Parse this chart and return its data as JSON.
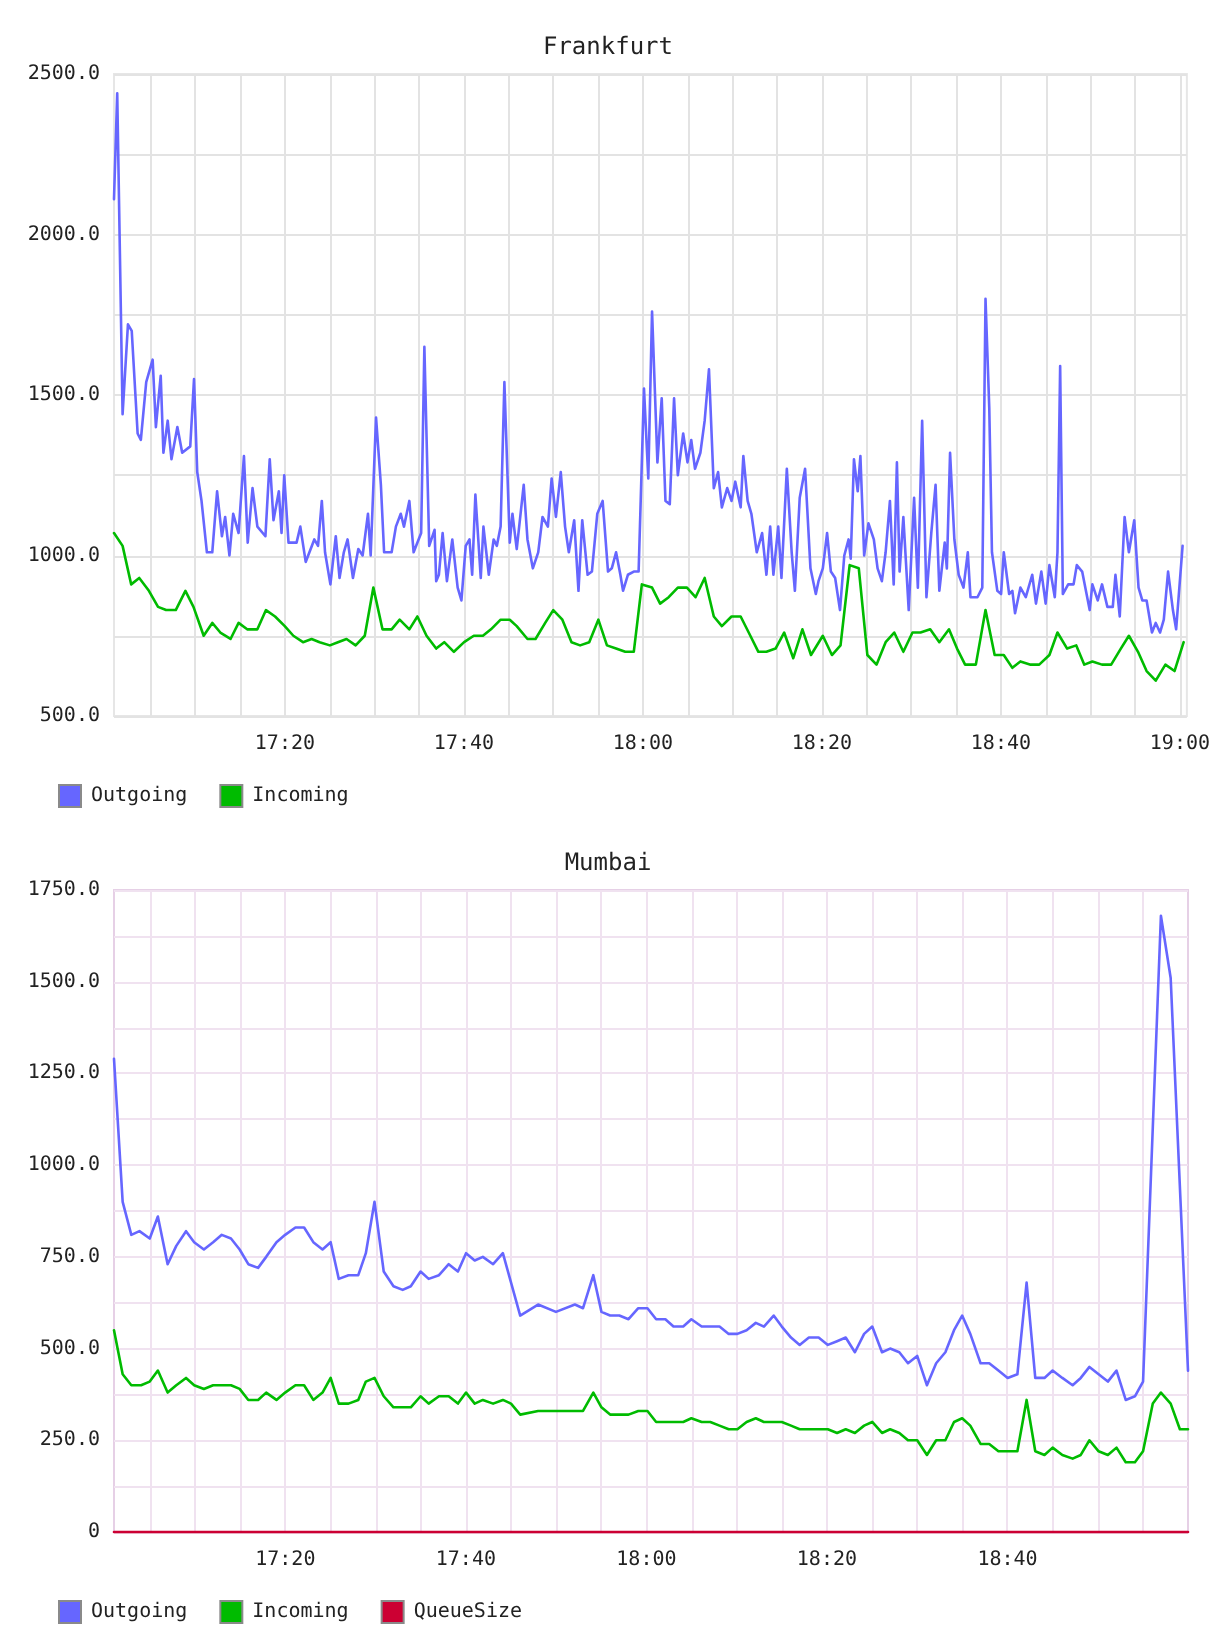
{
  "chart_data": [
    {
      "type": "line",
      "title": "Frankfurt",
      "xlim": [
        17.015,
        19.013
      ],
      "xticks": [
        {
          "value": 17.0833,
          "label": null
        },
        {
          "value": 17.1667,
          "label": null
        },
        {
          "value": 17.25,
          "label": null
        },
        {
          "value": 17.3333,
          "label": "17:20"
        },
        {
          "value": 17.4167,
          "label": null
        },
        {
          "value": 17.5,
          "label": null
        },
        {
          "value": 17.5833,
          "label": null
        },
        {
          "value": 17.6667,
          "label": "17:40"
        },
        {
          "value": 17.75,
          "label": null
        },
        {
          "value": 17.8333,
          "label": null
        },
        {
          "value": 17.9167,
          "label": null
        },
        {
          "value": 18,
          "label": "18:00"
        },
        {
          "value": 18.0833,
          "label": null
        },
        {
          "value": 18.1667,
          "label": null
        },
        {
          "value": 18.25,
          "label": null
        },
        {
          "value": 18.3333,
          "label": "18:20"
        },
        {
          "value": 18.4167,
          "label": null
        },
        {
          "value": 18.5,
          "label": null
        },
        {
          "value": 18.5833,
          "label": null
        },
        {
          "value": 18.6667,
          "label": "18:40"
        },
        {
          "value": 18.75,
          "label": null
        },
        {
          "value": 18.8333,
          "label": null
        },
        {
          "value": 18.9167,
          "label": null
        },
        {
          "value": 19,
          "label": "19:00"
        }
      ],
      "ylim": [
        500,
        2500
      ],
      "yticks": [
        {
          "value": 500,
          "label": "500.0"
        },
        {
          "value": 750,
          "label": null
        },
        {
          "value": 1000,
          "label": "1000.0"
        },
        {
          "value": 1250,
          "label": null
        },
        {
          "value": 1500,
          "label": "1500.0"
        },
        {
          "value": 1750,
          "label": null
        },
        {
          "value": 2000,
          "label": "2000.0"
        },
        {
          "value": 2250,
          "label": null
        },
        {
          "value": 2500,
          "label": "2500.0"
        }
      ],
      "grid": true,
      "legend": "bottom left",
      "marker": "none",
      "line_style": "solid",
      "series": [
        {
          "name": "Outgoing",
          "color": "#6666ff",
          "x": [
            17.015,
            17.021,
            17.031,
            17.041,
            17.048,
            17.059,
            17.065,
            17.075,
            17.087,
            17.093,
            17.102,
            17.107,
            17.115,
            17.122,
            17.133,
            17.142,
            17.157,
            17.164,
            17.17,
            17.178,
            17.188,
            17.198,
            17.207,
            17.216,
            17.222,
            17.23,
            17.237,
            17.247,
            17.257,
            17.264,
            17.273,
            17.282,
            17.297,
            17.305,
            17.312,
            17.322,
            17.327,
            17.332,
            17.34,
            17.355,
            17.362,
            17.372,
            17.388,
            17.395,
            17.402,
            17.408,
            17.418,
            17.428,
            17.435,
            17.443,
            17.45,
            17.46,
            17.47,
            17.478,
            17.488,
            17.493,
            17.503,
            17.512,
            17.518,
            17.532,
            17.54,
            17.549,
            17.555,
            17.565,
            17.573,
            17.587,
            17.593,
            17.602,
            17.612,
            17.615,
            17.62,
            17.627,
            17.635,
            17.645,
            17.655,
            17.662,
            17.67,
            17.677,
            17.682,
            17.688,
            17.698,
            17.703,
            17.713,
            17.722,
            17.728,
            17.735,
            17.742,
            17.752,
            17.757,
            17.765,
            17.778,
            17.785,
            17.795,
            17.805,
            17.813,
            17.823,
            17.83,
            17.838,
            17.847,
            17.855,
            17.862,
            17.872,
            17.88,
            17.887,
            17.897,
            17.905,
            17.915,
            17.925,
            17.935,
            17.942,
            17.95,
            17.958,
            17.963,
            17.972,
            17.983,
            17.992,
            18.002,
            18.01,
            18.017,
            18.027,
            18.035,
            18.042,
            18.05,
            18.058,
            18.065,
            18.075,
            18.083,
            18.09,
            18.097,
            18.107,
            18.115,
            18.123,
            18.132,
            18.14,
            18.147,
            18.157,
            18.165,
            18.172,
            18.182,
            18.187,
            18.195,
            18.202,
            18.212,
            18.222,
            18.23,
            18.237,
            18.243,
            18.252,
            18.258,
            18.268,
            18.277,
            18.283,
            18.292,
            18.302,
            18.312,
            18.322,
            18.327,
            18.335,
            18.343,
            18.35,
            18.358,
            18.367,
            18.375,
            18.383,
            18.387,
            18.393,
            18.4,
            18.405,
            18.412,
            18.42,
            18.43,
            18.437,
            18.445,
            18.452,
            18.46,
            18.467,
            18.473,
            18.478,
            18.485,
            18.495,
            18.505,
            18.512,
            18.52,
            18.528,
            18.537,
            18.545,
            18.552,
            18.562,
            18.566,
            18.572,
            18.58,
            18.588,
            18.597,
            18.605,
            18.61,
            18.623,
            18.632,
            18.638,
            18.645,
            18.65,
            18.66,
            18.667,
            18.672,
            18.682,
            18.688,
            18.693,
            18.703,
            18.713,
            18.725,
            18.732,
            18.742,
            18.75,
            18.757,
            18.767,
            18.772,
            18.777,
            18.782,
            18.792,
            18.802,
            18.808,
            18.818,
            18.832,
            18.837,
            18.847,
            18.855,
            18.865,
            18.875,
            18.88,
            18.888,
            18.897,
            18.905,
            18.915,
            18.923,
            18.93,
            18.938,
            18.948,
            18.955,
            18.963,
            18.97,
            18.978,
            18.987,
            18.993,
            19.005
          ],
          "values": [
            2110,
            2440,
            1440,
            1720,
            1700,
            1380,
            1360,
            1540,
            1610,
            1400,
            1560,
            1320,
            1420,
            1300,
            1400,
            1320,
            1340,
            1550,
            1260,
            1170,
            1010,
            1010,
            1200,
            1060,
            1120,
            1000,
            1130,
            1070,
            1310,
            1040,
            1210,
            1090,
            1060,
            1300,
            1110,
            1200,
            1070,
            1250,
            1040,
            1040,
            1090,
            980,
            1050,
            1030,
            1170,
            1010,
            910,
            1060,
            930,
            1010,
            1050,
            930,
            1020,
            1000,
            1130,
            1000,
            1430,
            1220,
            1010,
            1010,
            1090,
            1130,
            1090,
            1170,
            1010,
            1070,
            1650,
            1030,
            1080,
            920,
            940,
            1070,
            920,
            1050,
            900,
            860,
            1030,
            1050,
            940,
            1190,
            930,
            1090,
            940,
            1050,
            1030,
            1090,
            1540,
            1040,
            1130,
            1020,
            1220,
            1050,
            960,
            1010,
            1120,
            1090,
            1240,
            1120,
            1260,
            1090,
            1010,
            1110,
            890,
            1110,
            940,
            950,
            1130,
            1170,
            950,
            960,
            1010,
            940,
            890,
            940,
            950,
            950,
            1520,
            1240,
            1760,
            1290,
            1490,
            1170,
            1160,
            1490,
            1250,
            1380,
            1290,
            1360,
            1270,
            1320,
            1420,
            1580,
            1210,
            1260,
            1150,
            1210,
            1170,
            1230,
            1150,
            1310,
            1170,
            1130,
            1010,
            1070,
            940,
            1090,
            940,
            1090,
            930,
            1270,
            1010,
            890,
            1180,
            1270,
            960,
            880,
            920,
            960,
            1070,
            950,
            930,
            830,
            1000,
            1050,
            990,
            1300,
            1200,
            1310,
            1000,
            1100,
            1050,
            960,
            920,
            1010,
            1170,
            910,
            1290,
            950,
            1120,
            830,
            1180,
            900,
            1420,
            870,
            1070,
            1220,
            890,
            1040,
            960,
            1320,
            1050,
            940,
            900,
            1010,
            870,
            870,
            900,
            1800,
            1460,
            1010,
            890,
            880,
            1010,
            880,
            890,
            820,
            900,
            870,
            940,
            850,
            950,
            850,
            970,
            870,
            1010,
            1590,
            880,
            910,
            910,
            970,
            950,
            830,
            910,
            860,
            910,
            840,
            840,
            940,
            810,
            1120,
            1010,
            1110,
            900,
            860,
            860,
            760,
            790,
            760,
            800,
            950,
            830,
            770,
            1030
          ]
        },
        {
          "name": "Incoming",
          "color": "#00bb00",
          "x": [
            17.015,
            17.031,
            17.047,
            17.062,
            17.08,
            17.097,
            17.112,
            17.13,
            17.148,
            17.163,
            17.182,
            17.198,
            17.213,
            17.232,
            17.247,
            17.263,
            17.282,
            17.298,
            17.315,
            17.333,
            17.349,
            17.367,
            17.383,
            17.398,
            17.417,
            17.432,
            17.448,
            17.465,
            17.482,
            17.498,
            17.515,
            17.532,
            17.547,
            17.565,
            17.58,
            17.597,
            17.615,
            17.63,
            17.648,
            17.667,
            17.685,
            17.702,
            17.717,
            17.735,
            17.752,
            17.765,
            17.785,
            17.8,
            17.818,
            17.833,
            17.85,
            17.867,
            17.883,
            17.9,
            17.917,
            17.933,
            17.95,
            17.967,
            17.983,
            17.998,
            18.017,
            18.032,
            18.048,
            18.065,
            18.082,
            18.098,
            18.115,
            18.132,
            18.147,
            18.165,
            18.182,
            18.197,
            18.215,
            18.23,
            18.247,
            18.263,
            18.28,
            18.297,
            18.313,
            18.335,
            18.352,
            18.368,
            18.385,
            18.402,
            18.418,
            18.435,
            18.452,
            18.468,
            18.485,
            18.502,
            18.517,
            18.535,
            18.552,
            18.57,
            18.585,
            18.6,
            18.62,
            18.638,
            18.655,
            18.672,
            18.688,
            18.703,
            18.722,
            18.738,
            18.757,
            18.772,
            18.79,
            18.807,
            18.822,
            18.837,
            18.855,
            18.872,
            18.89,
            18.905,
            18.922,
            18.938,
            18.955,
            18.973,
            18.99,
            19.007
          ],
          "values": [
            1070,
            1030,
            910,
            930,
            890,
            840,
            830,
            830,
            890,
            840,
            750,
            790,
            760,
            740,
            790,
            770,
            770,
            830,
            810,
            780,
            750,
            730,
            740,
            730,
            720,
            730,
            740,
            720,
            750,
            900,
            770,
            770,
            800,
            770,
            810,
            750,
            710,
            730,
            700,
            730,
            750,
            750,
            770,
            800,
            800,
            780,
            740,
            740,
            790,
            830,
            800,
            730,
            720,
            730,
            800,
            720,
            710,
            700,
            700,
            910,
            900,
            850,
            870,
            900,
            900,
            870,
            930,
            810,
            780,
            810,
            810,
            760,
            700,
            700,
            710,
            760,
            680,
            770,
            690,
            750,
            690,
            720,
            970,
            960,
            690,
            660,
            730,
            760,
            700,
            760,
            760,
            770,
            730,
            770,
            710,
            660,
            660,
            830,
            690,
            690,
            650,
            670,
            660,
            660,
            690,
            760,
            710,
            720,
            660,
            670,
            660,
            660,
            710,
            750,
            700,
            640,
            610,
            660,
            640,
            730
          ]
        }
      ]
    },
    {
      "type": "line",
      "title": "Mumbai",
      "xlim": [
        17.017,
        19.0
      ],
      "xticks": [
        {
          "value": 17.0833,
          "label": null
        },
        {
          "value": 17.1667,
          "label": null
        },
        {
          "value": 17.25,
          "label": null
        },
        {
          "value": 17.3333,
          "label": "17:20"
        },
        {
          "value": 17.4167,
          "label": null
        },
        {
          "value": 17.5,
          "label": null
        },
        {
          "value": 17.5833,
          "label": null
        },
        {
          "value": 17.6667,
          "label": "17:40"
        },
        {
          "value": 17.75,
          "label": null
        },
        {
          "value": 17.8333,
          "label": null
        },
        {
          "value": 17.9167,
          "label": null
        },
        {
          "value": 18,
          "label": "18:00"
        },
        {
          "value": 18.0833,
          "label": null
        },
        {
          "value": 18.1667,
          "label": null
        },
        {
          "value": 18.25,
          "label": null
        },
        {
          "value": 18.3333,
          "label": "18:20"
        },
        {
          "value": 18.4167,
          "label": null
        },
        {
          "value": 18.5,
          "label": null
        },
        {
          "value": 18.5833,
          "label": null
        },
        {
          "value": 18.6667,
          "label": "18:40"
        },
        {
          "value": 18.75,
          "label": null
        },
        {
          "value": 18.8333,
          "label": null
        },
        {
          "value": 18.9167,
          "label": null
        }
      ],
      "ylim": [
        0,
        1750
      ],
      "yticks": [
        0,
        {
          "value": 125,
          "label": null
        },
        {
          "value": 250,
          "label": "250.0"
        },
        {
          "value": 375,
          "label": null
        },
        {
          "value": 500,
          "label": "500.0"
        },
        {
          "value": 625,
          "label": null
        },
        {
          "value": 750,
          "label": "750.0"
        },
        {
          "value": 875,
          "label": null
        },
        {
          "value": 1000,
          "label": "1000.0"
        },
        {
          "value": 1125,
          "label": null
        },
        {
          "value": 1250,
          "label": "1250.0"
        },
        {
          "value": 1375,
          "label": null
        },
        {
          "value": 1500,
          "label": "1500.0"
        },
        {
          "value": 1625,
          "label": null
        },
        {
          "value": 1750,
          "label": "1750.0"
        }
      ],
      "grid": true,
      "legend": "bottom left",
      "marker": "none",
      "line_style": "solid",
      "series": [
        {
          "name": "Outgoing",
          "color": "#6666ff",
          "x": [
            17.017,
            17.033,
            17.049,
            17.064,
            17.083,
            17.098,
            17.116,
            17.132,
            17.15,
            17.165,
            17.183,
            17.2,
            17.216,
            17.233,
            17.249,
            17.265,
            17.283,
            17.298,
            17.317,
            17.333,
            17.352,
            17.368,
            17.385,
            17.402,
            17.417,
            17.432,
            17.45,
            17.468,
            17.482,
            17.498,
            17.515,
            17.533,
            17.55,
            17.565,
            17.583,
            17.598,
            17.617,
            17.635,
            17.652,
            17.667,
            17.683,
            17.698,
            17.717,
            17.735,
            17.767,
            17.8,
            17.833,
            17.868,
            17.883,
            17.902,
            17.917,
            17.933,
            17.95,
            17.967,
            17.985,
            18.002,
            18.018,
            18.035,
            18.05,
            18.068,
            18.083,
            18.102,
            18.118,
            18.135,
            18.152,
            18.168,
            18.185,
            18.202,
            18.217,
            18.235,
            18.25,
            18.267,
            18.283,
            18.3,
            18.318,
            18.335,
            18.352,
            18.368,
            18.385,
            18.402,
            18.417,
            18.435,
            18.45,
            18.467,
            18.483,
            18.5,
            18.518,
            18.535,
            18.552,
            18.568,
            18.583,
            18.598,
            18.617,
            18.633,
            18.65,
            18.667,
            18.685,
            18.702,
            18.718,
            18.735,
            18.75,
            18.768,
            18.787,
            18.802,
            18.818,
            18.835,
            18.852,
            18.868,
            18.885,
            18.902,
            18.917,
            18.95,
            18.968,
            19.0
          ],
          "values": [
            1290,
            900,
            810,
            820,
            800,
            860,
            730,
            780,
            820,
            790,
            770,
            790,
            810,
            800,
            770,
            730,
            720,
            750,
            790,
            810,
            830,
            830,
            790,
            770,
            790,
            690,
            700,
            700,
            760,
            900,
            710,
            670,
            660,
            670,
            710,
            690,
            700,
            730,
            710,
            760,
            740,
            750,
            730,
            760,
            590,
            620,
            600,
            620,
            610,
            700,
            600,
            590,
            590,
            580,
            610,
            610,
            580,
            580,
            560,
            560,
            580,
            560,
            560,
            560,
            540,
            540,
            550,
            570,
            560,
            590,
            560,
            530,
            510,
            530,
            530,
            510,
            520,
            530,
            490,
            540,
            560,
            490,
            500,
            490,
            460,
            480,
            400,
            460,
            490,
            550,
            590,
            540,
            460,
            460,
            440,
            420,
            430,
            680,
            420,
            420,
            440,
            420,
            400,
            420,
            450,
            430,
            410,
            440,
            360,
            370,
            410,
            1680,
            1510,
            440
          ]
        },
        {
          "name": "Incoming",
          "color": "#00bb00",
          "x": [
            17.017,
            17.033,
            17.049,
            17.067,
            17.083,
            17.098,
            17.116,
            17.132,
            17.15,
            17.165,
            17.183,
            17.2,
            17.216,
            17.233,
            17.249,
            17.265,
            17.283,
            17.298,
            17.317,
            17.333,
            17.352,
            17.368,
            17.385,
            17.402,
            17.417,
            17.432,
            17.45,
            17.468,
            17.482,
            17.498,
            17.515,
            17.533,
            17.55,
            17.565,
            17.583,
            17.598,
            17.617,
            17.635,
            17.652,
            17.667,
            17.683,
            17.698,
            17.717,
            17.735,
            17.75,
            17.767,
            17.8,
            17.833,
            17.868,
            17.883,
            17.902,
            17.917,
            17.933,
            17.95,
            17.967,
            17.985,
            18.002,
            18.018,
            18.035,
            18.05,
            18.068,
            18.083,
            18.102,
            18.118,
            18.135,
            18.152,
            18.168,
            18.185,
            18.202,
            18.217,
            18.235,
            18.25,
            18.267,
            18.283,
            18.3,
            18.318,
            18.335,
            18.352,
            18.368,
            18.385,
            18.402,
            18.417,
            18.435,
            18.45,
            18.467,
            18.483,
            18.5,
            18.518,
            18.535,
            18.552,
            18.568,
            18.583,
            18.598,
            18.617,
            18.633,
            18.65,
            18.667,
            18.685,
            18.702,
            18.718,
            18.735,
            18.75,
            18.768,
            18.787,
            18.802,
            18.818,
            18.835,
            18.852,
            18.868,
            18.885,
            18.902,
            18.917,
            18.935,
            18.95,
            18.968,
            18.985,
            19.0
          ],
          "values": [
            550,
            430,
            400,
            400,
            410,
            440,
            380,
            400,
            420,
            400,
            390,
            400,
            400,
            400,
            390,
            360,
            360,
            380,
            360,
            380,
            400,
            400,
            360,
            380,
            420,
            350,
            350,
            360,
            410,
            420,
            370,
            340,
            340,
            340,
            370,
            350,
            370,
            370,
            350,
            380,
            350,
            360,
            350,
            360,
            350,
            320,
            330,
            330,
            330,
            330,
            380,
            340,
            320,
            320,
            320,
            330,
            330,
            300,
            300,
            300,
            300,
            310,
            300,
            300,
            290,
            280,
            280,
            300,
            310,
            300,
            300,
            300,
            290,
            280,
            280,
            280,
            280,
            270,
            280,
            270,
            290,
            300,
            270,
            280,
            270,
            250,
            250,
            210,
            250,
            250,
            300,
            310,
            290,
            240,
            240,
            220,
            220,
            220,
            360,
            220,
            210,
            230,
            210,
            200,
            210,
            250,
            220,
            210,
            230,
            190,
            190,
            220,
            350,
            380,
            350,
            280,
            280
          ]
        },
        {
          "name": "QueueSize",
          "color": "#cc0033",
          "x": [
            17.017,
            19.0
          ],
          "values": [
            0,
            0
          ]
        }
      ]
    }
  ]
}
